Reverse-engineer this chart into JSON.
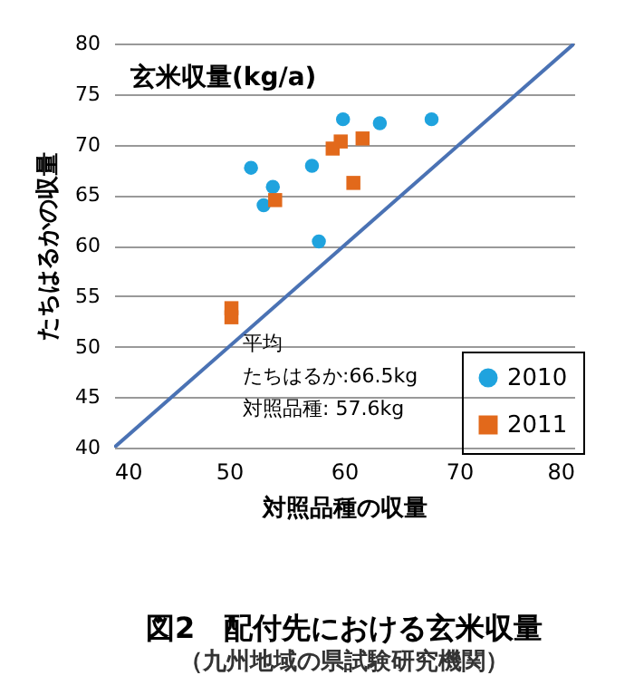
{
  "chart_data": {
    "type": "scatter",
    "title": "図2　配付先における玄米収量",
    "subtitle": "（九州地域の県試験研究機関）",
    "xlabel": "対照品種の収量",
    "ylabel": "たちはるかの収量",
    "annotations": [
      "玄米収量(kg/a)",
      "平均",
      "たちはるか:66.5kg",
      "対照品種: 57.6kg"
    ],
    "xlim": [
      40,
      80
    ],
    "xticks": [
      40,
      50,
      60,
      70,
      80
    ],
    "ylim": [
      40,
      80
    ],
    "yticks": [
      40,
      45,
      50,
      55,
      60,
      65,
      70,
      75,
      80
    ],
    "grid": "y",
    "legend": "bottom right",
    "series": [
      {
        "name": "2010",
        "color": "#1fa3de",
        "marker": "circle",
        "x": [
          51.9,
          53.0,
          53.8,
          57.2,
          57.8,
          59.9,
          63.1,
          67.6
        ],
        "values": [
          67.7,
          64.0,
          65.8,
          67.9,
          60.4,
          72.5,
          72.1,
          72.5
        ]
      },
      {
        "name": "2011",
        "color": "#e2691b",
        "marker": "square",
        "x": [
          50.2,
          50.2,
          54.0,
          59.0,
          59.7,
          61.6,
          60.8
        ],
        "values": [
          53.8,
          52.9,
          64.5,
          69.6,
          70.3,
          70.6,
          66.2
        ]
      },
      {
        "type": "line",
        "color": "#4a72b4",
        "x": [
          40,
          80
        ],
        "values": [
          40,
          80
        ]
      }
    ]
  }
}
